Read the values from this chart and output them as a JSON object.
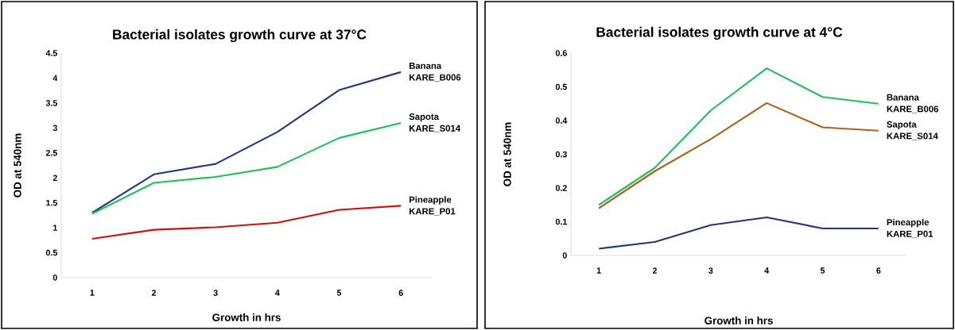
{
  "chart_data": [
    {
      "type": "line",
      "title": "Bacterial isolates growth curve at 37°C",
      "xlabel": "Growth in hrs",
      "ylabel": "OD at 540nm",
      "categories": [
        "1",
        "2",
        "3",
        "4",
        "5",
        "6"
      ],
      "ylim": [
        0,
        4.5
      ],
      "yticks": [
        0,
        0.5,
        1,
        1.5,
        2,
        2.5,
        3,
        3.5,
        4,
        4.5
      ],
      "grid": false,
      "legend": false,
      "marker": "none",
      "line_style": "solid",
      "series": [
        {
          "name": "Banana KARE_B006",
          "color": "#1f3a7a",
          "values": [
            1.3,
            2.07,
            2.28,
            2.92,
            3.76,
            4.12
          ]
        },
        {
          "name": "Sapota KARE_S014",
          "color": "#22c05a",
          "values": [
            1.28,
            1.9,
            2.02,
            2.22,
            2.8,
            3.1
          ]
        },
        {
          "name": "Pineapple KARE_P01",
          "color": "#d01010",
          "values": [
            0.78,
            0.96,
            1.01,
            1.1,
            1.36,
            1.44
          ]
        }
      ]
    },
    {
      "type": "line",
      "title": "Bacterial isolates growth curve at 4°C",
      "xlabel": "Growth in hrs",
      "ylabel": "OD at 540nm",
      "categories": [
        "1",
        "2",
        "3",
        "4",
        "5",
        "6"
      ],
      "ylim": [
        0,
        0.6
      ],
      "yticks": [
        0,
        0.1,
        0.2,
        0.3,
        0.4,
        0.5,
        0.6
      ],
      "grid": false,
      "legend": false,
      "marker": "none",
      "line_style": "solid",
      "series": [
        {
          "name": "Banana KARE_B006",
          "color": "#22c05a",
          "values": [
            0.15,
            0.26,
            0.43,
            0.555,
            0.47,
            0.45
          ]
        },
        {
          "name": "Sapota KARE_S014",
          "color": "#b0601a",
          "values": [
            0.14,
            0.25,
            0.345,
            0.452,
            0.38,
            0.37
          ]
        },
        {
          "name": "Pineapple KARE_P01",
          "color": "#1f3a7a",
          "values": [
            0.02,
            0.04,
            0.09,
            0.113,
            0.08,
            0.08
          ]
        }
      ]
    }
  ]
}
